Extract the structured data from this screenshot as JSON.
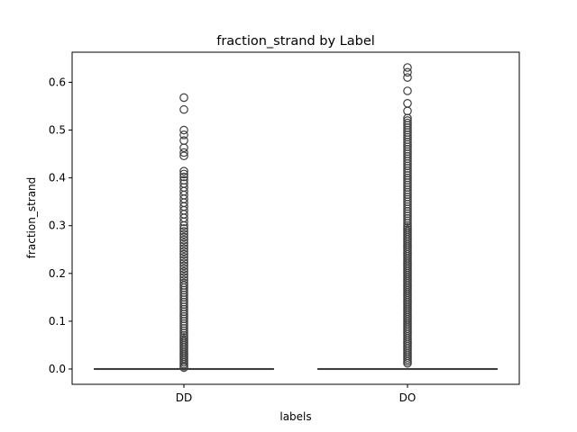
{
  "chart_data": {
    "type": "box",
    "title": "fraction_strand by Label",
    "xlabel": "labels",
    "ylabel": "fraction_strand",
    "categories": [
      "DD",
      "DO"
    ],
    "ylim": [
      -0.032,
      0.663
    ],
    "yticks": [
      0.0,
      0.1,
      0.2,
      0.3,
      0.4,
      0.5,
      0.6
    ],
    "ytick_labels": [
      "0.0",
      "0.1",
      "0.2",
      "0.3",
      "0.4",
      "0.5",
      "0.6"
    ],
    "grid": false,
    "legend": "none",
    "series": [
      {
        "category": "DD",
        "whislo": 0.0,
        "q1": 0.0,
        "median": 0.0,
        "q3": 0.0,
        "whishi": 0.0,
        "fliers": [
          0.003,
          0.006,
          0.01,
          0.014,
          0.018,
          0.022,
          0.026,
          0.03,
          0.034,
          0.038,
          0.042,
          0.046,
          0.05,
          0.054,
          0.058,
          0.062,
          0.066,
          0.07,
          0.075,
          0.08,
          0.085,
          0.09,
          0.095,
          0.1,
          0.105,
          0.11,
          0.115,
          0.12,
          0.125,
          0.13,
          0.135,
          0.14,
          0.145,
          0.15,
          0.155,
          0.16,
          0.165,
          0.17,
          0.175,
          0.18,
          0.186,
          0.192,
          0.198,
          0.204,
          0.21,
          0.216,
          0.222,
          0.228,
          0.234,
          0.24,
          0.246,
          0.252,
          0.258,
          0.264,
          0.27,
          0.276,
          0.282,
          0.288,
          0.294,
          0.3,
          0.308,
          0.316,
          0.324,
          0.332,
          0.34,
          0.348,
          0.356,
          0.364,
          0.372,
          0.38,
          0.388,
          0.395,
          0.402,
          0.408,
          0.414,
          0.446,
          0.453,
          0.463,
          0.478,
          0.49,
          0.5,
          0.543,
          0.568
        ]
      },
      {
        "category": "DO",
        "whislo": 0.0,
        "q1": 0.0,
        "median": 0.0,
        "q3": 0.0,
        "whishi": 0.0,
        "fliers": [
          0.012,
          0.016,
          0.02,
          0.024,
          0.028,
          0.032,
          0.036,
          0.04,
          0.044,
          0.048,
          0.052,
          0.056,
          0.06,
          0.064,
          0.068,
          0.072,
          0.076,
          0.08,
          0.084,
          0.088,
          0.092,
          0.096,
          0.1,
          0.104,
          0.108,
          0.112,
          0.116,
          0.12,
          0.124,
          0.128,
          0.132,
          0.136,
          0.14,
          0.144,
          0.148,
          0.152,
          0.156,
          0.16,
          0.164,
          0.168,
          0.172,
          0.176,
          0.18,
          0.184,
          0.188,
          0.192,
          0.196,
          0.2,
          0.204,
          0.208,
          0.212,
          0.216,
          0.22,
          0.224,
          0.228,
          0.232,
          0.236,
          0.24,
          0.244,
          0.248,
          0.252,
          0.256,
          0.26,
          0.264,
          0.268,
          0.272,
          0.276,
          0.28,
          0.284,
          0.288,
          0.292,
          0.296,
          0.3,
          0.305,
          0.31,
          0.315,
          0.32,
          0.325,
          0.33,
          0.335,
          0.34,
          0.345,
          0.35,
          0.355,
          0.36,
          0.365,
          0.37,
          0.375,
          0.38,
          0.385,
          0.39,
          0.395,
          0.4,
          0.405,
          0.41,
          0.415,
          0.42,
          0.425,
          0.43,
          0.435,
          0.44,
          0.445,
          0.45,
          0.455,
          0.46,
          0.465,
          0.47,
          0.475,
          0.48,
          0.485,
          0.49,
          0.495,
          0.5,
          0.505,
          0.51,
          0.515,
          0.52,
          0.525,
          0.54,
          0.556,
          0.582,
          0.61,
          0.621,
          0.631
        ]
      }
    ],
    "colors": {
      "box_edge": "#3f3f3f",
      "flier_edge": "#3f3f3f",
      "axes": "#000000",
      "background": "#ffffff"
    }
  }
}
